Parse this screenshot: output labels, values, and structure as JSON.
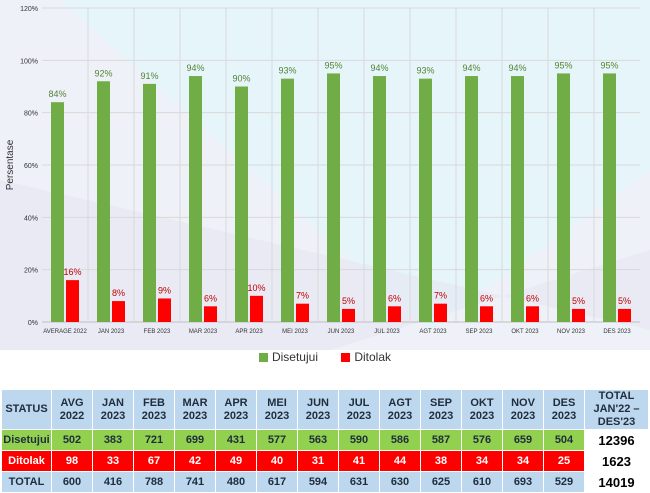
{
  "chart_data": {
    "type": "bar",
    "title": "",
    "xlabel": "",
    "ylabel": "Persentase",
    "ylim": [
      0,
      120
    ],
    "yticks": [
      "0%",
      "20%",
      "40%",
      "60%",
      "80%",
      "100%",
      "120%"
    ],
    "categories": [
      "AVERAGE 2022",
      "JAN 2023",
      "FEB 2023",
      "MAR 2023",
      "APR 2023",
      "MEI 2023",
      "JUN 2023",
      "JUL 2023",
      "AGT 2023",
      "SEP 2023",
      "OKT 2023",
      "NOV 2023",
      "DES 2023"
    ],
    "series": [
      {
        "name": "Disetujui",
        "color": "#70ad47",
        "label_color": "#548235",
        "values": [
          84,
          92,
          91,
          94,
          90,
          93,
          95,
          94,
          93,
          94,
          94,
          95,
          95
        ],
        "labels": [
          "84%",
          "92%",
          "91%",
          "94%",
          "90%",
          "93%",
          "95%",
          "94%",
          "93%",
          "94%",
          "94%",
          "95%",
          "95%"
        ]
      },
      {
        "name": "Ditolak",
        "color": "#ff0000",
        "label_color": "#c00000",
        "values": [
          16,
          8,
          9,
          6,
          10,
          7,
          5,
          6,
          7,
          6,
          6,
          5,
          5
        ],
        "labels": [
          "16%",
          "8%",
          "9%",
          "6%",
          "10%",
          "7%",
          "5%",
          "6%",
          "7%",
          "6%",
          "6%",
          "5%",
          "5%"
        ]
      }
    ],
    "legend": [
      "Disetujui",
      "Ditolak"
    ],
    "legend_position": "bottom"
  },
  "table": {
    "header": [
      "STATUS",
      "AVG 2022",
      "JAN 2023",
      "FEB 2023",
      "MAR 2023",
      "APR 2023",
      "MEI 2023",
      "JUN 2023",
      "JUL 2023",
      "AGT 2023",
      "SEP 2023",
      "OKT 2023",
      "NOV 2023",
      "DES 2023",
      "TOTAL JAN'22 – DES'23"
    ],
    "rows": [
      {
        "label": "Disetujui",
        "cells": [
          "502",
          "383",
          "721",
          "699",
          "431",
          "577",
          "563",
          "590",
          "586",
          "587",
          "576",
          "659",
          "504"
        ],
        "total": "12396"
      },
      {
        "label": "Ditolak",
        "cells": [
          "98",
          "33",
          "67",
          "42",
          "49",
          "40",
          "31",
          "41",
          "44",
          "38",
          "34",
          "34",
          "25"
        ],
        "total": "1623"
      },
      {
        "label": "TOTAL",
        "cells": [
          "600",
          "416",
          "788",
          "741",
          "480",
          "617",
          "594",
          "631",
          "630",
          "625",
          "610",
          "693",
          "529"
        ],
        "total": "14019"
      }
    ]
  }
}
